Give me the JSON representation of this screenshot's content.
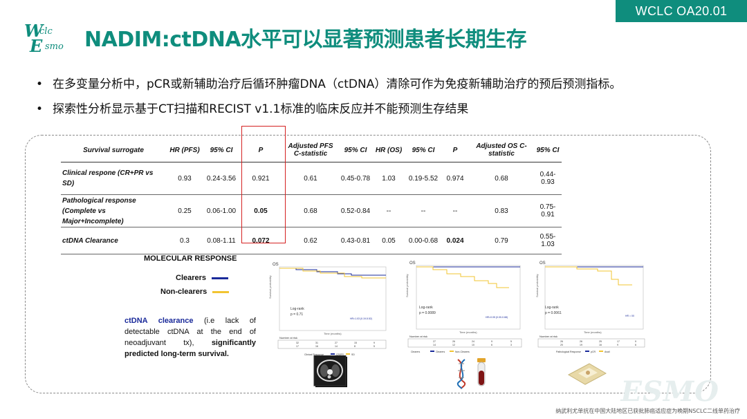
{
  "header": {
    "tag": "WCLC OA20.01",
    "logo_line1_big": "W",
    "logo_line1_small": "clc",
    "logo_line2_big": "E",
    "logo_line2_small": "smo",
    "title": "NADIM:ctDNA水平可以显著预测患者长期生存"
  },
  "bullets": [
    "在多变量分析中，pCR或新辅助治疗后循环肿瘤DNA（ctDNA）清除可作为免疫新辅助治疗的预后预测指标。",
    "探索性分析显示基于CT扫描和RECIST v1.1标准的临床反应并不能预测生存结果"
  ],
  "bullet_symbol": "•",
  "table": {
    "headers": [
      "Survival surrogate",
      "HR (PFS)",
      "95% CI",
      "P",
      "Adjusted PFS C-statistic",
      "95% CI",
      "HR (OS)",
      "95% CI",
      "P",
      "Adjusted OS C-statistic",
      "95% CI"
    ],
    "rows": [
      {
        "label": "Clinical respone (CR+PR vs SD)",
        "hr_pfs": "0.93",
        "ci_pfs": "0.24-3.56",
        "p_pfs": "0.921",
        "c_pfs": "0.61",
        "ci_c_pfs": "0.45-0.78",
        "hr_os": "1.03",
        "ci_os": "0.19-5.52",
        "p_os": "0.974",
        "c_os": "0.68",
        "ci_c_os": "0.44-0.93"
      },
      {
        "label": "Pathological response (Complete vs Major+Incomplete)",
        "hr_pfs": "0.25",
        "ci_pfs": "0.06-1.00",
        "p_pfs": "0.05",
        "c_pfs": "0.68",
        "ci_c_pfs": "0.52-0.84",
        "hr_os": "--",
        "ci_os": "--",
        "p_os": "--",
        "c_os": "0.83",
        "ci_c_os": "0.75-0.91"
      },
      {
        "label": "ctDNA Clearance",
        "hr_pfs": "0.3",
        "ci_pfs": "0.08-1.11",
        "p_pfs": "0.072",
        "c_pfs": "0.62",
        "ci_c_pfs": "0.43-0.81",
        "hr_os": "0.05",
        "ci_os": "0.00-0.68",
        "p_os": "0.024",
        "c_os": "0.79",
        "ci_c_os": "0.55-1.03"
      }
    ]
  },
  "molecular": {
    "title": "MOLECULAR RESPONSE",
    "clearers": "Clearers",
    "non_clearers": "Non-clearers",
    "note_hl": "ctDNA clearance",
    "note_mid": " (i.e lack of detectable ctDNA at the end of neoadjuvant tx), ",
    "note_bold": "significantly predicted long-term survival."
  },
  "plots": [
    {
      "label": "OS",
      "ylab": "Survival probability",
      "xlab": "Time (months)",
      "test": "Log-rank",
      "p": "p = 0.71",
      "hr": "HR=1.03 (0.19-5.52)",
      "risk_title": "Number at risk",
      "risk_rows": [
        [
          "32",
          "31",
          "27",
          "15",
          "9"
        ],
        [
          "17",
          "16",
          "14",
          "8",
          "5"
        ]
      ],
      "legend": [
        "Clinical Response",
        "CR/PR",
        "SD"
      ]
    },
    {
      "label": "OS",
      "ylab": "Survival probability",
      "xlab": "Time (months)",
      "test": "Log-rank",
      "p": "p = 0.0089",
      "hr": "HR=0.05 (0.00-0.68)",
      "risk_title": "Number at risk",
      "risk_rows": [
        [
          "27",
          "26",
          "24",
          "9",
          "5"
        ],
        [
          "14",
          "12",
          "10",
          "6",
          "3"
        ]
      ],
      "legend": [
        "Clearers",
        "Clearers",
        "Non-Clearers"
      ]
    },
    {
      "label": "OS",
      "ylab": "Survival probability",
      "xlab": "Time (months)",
      "test": "Log-rank",
      "p": "p = 0.0061",
      "hr": "HR = 00",
      "risk_title": "Number at risk",
      "risk_rows": [
        [
          "26",
          "26",
          "25",
          "17",
          "9"
        ],
        [
          "20",
          "19",
          "16",
          "9",
          "6"
        ]
      ],
      "legend": [
        "Pathological Response",
        "pCR",
        "Avail"
      ]
    }
  ],
  "colors": {
    "accent": "#0f8d7d",
    "clearers": "#1a2a9a",
    "non_clearers": "#f2c431",
    "red_box": "#d42020"
  },
  "footer": "纳武利尤单抗在中国大陆地区已获批肺癌适应症为晚期NSCLC二线单药治疗",
  "watermark": "ESMO"
}
